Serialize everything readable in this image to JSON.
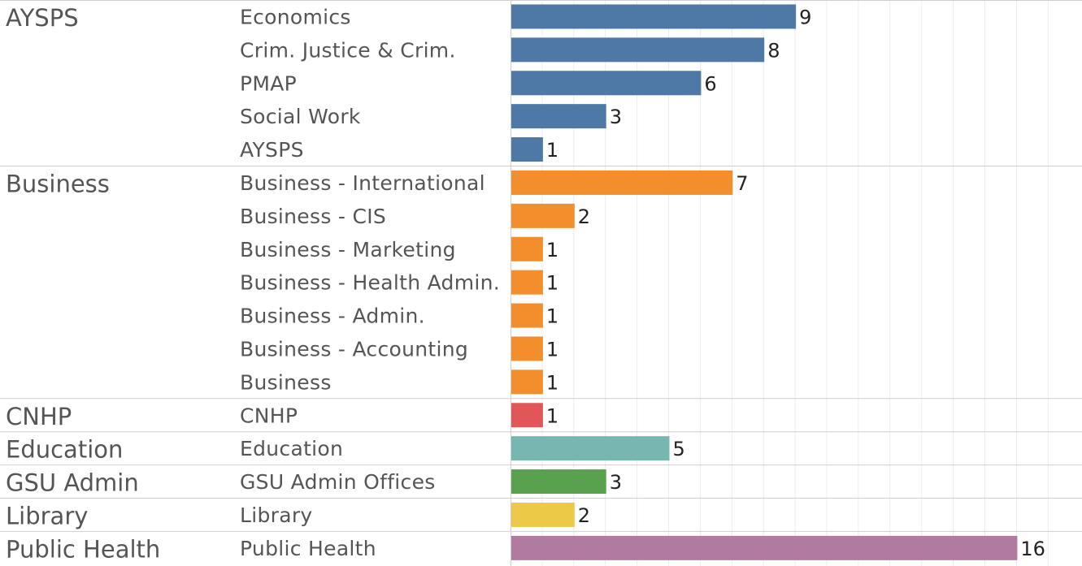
{
  "chart_data": {
    "type": "bar",
    "orientation": "horizontal",
    "title": "",
    "xlabel": "",
    "ylabel": "",
    "xlim": [
      0,
      17.5
    ],
    "grid": true,
    "legend": "none",
    "groups": [
      {
        "name": "AYSPS",
        "color": "#4e79a7",
        "items": [
          {
            "label": "Economics",
            "value": 9
          },
          {
            "label": "Crim. Justice & Crim.",
            "value": 8
          },
          {
            "label": "PMAP",
            "value": 6
          },
          {
            "label": "Social Work",
            "value": 3
          },
          {
            "label": "AYSPS",
            "value": 1
          }
        ]
      },
      {
        "name": "Business",
        "color": "#f28e2b",
        "items": [
          {
            "label": "Business - International",
            "value": 7
          },
          {
            "label": "Business - CIS",
            "value": 2
          },
          {
            "label": "Business - Marketing",
            "value": 1
          },
          {
            "label": "Business - Health Admin.",
            "value": 1
          },
          {
            "label": "Business - Admin.",
            "value": 1
          },
          {
            "label": "Business - Accounting",
            "value": 1
          },
          {
            "label": "Business",
            "value": 1
          }
        ]
      },
      {
        "name": "CNHP",
        "color": "#e15759",
        "items": [
          {
            "label": "CNHP",
            "value": 1
          }
        ]
      },
      {
        "name": "Education",
        "color": "#76b7b2",
        "items": [
          {
            "label": "Education",
            "value": 5
          }
        ]
      },
      {
        "name": "GSU Admin",
        "color": "#59a14f",
        "items": [
          {
            "label": "GSU Admin Offices",
            "value": 3
          }
        ]
      },
      {
        "name": "Library",
        "color": "#edc948",
        "items": [
          {
            "label": "Library",
            "value": 2
          }
        ]
      },
      {
        "name": "Public Health",
        "color": "#b07aa1",
        "items": [
          {
            "label": "Public Health",
            "value": 16
          }
        ]
      }
    ]
  }
}
